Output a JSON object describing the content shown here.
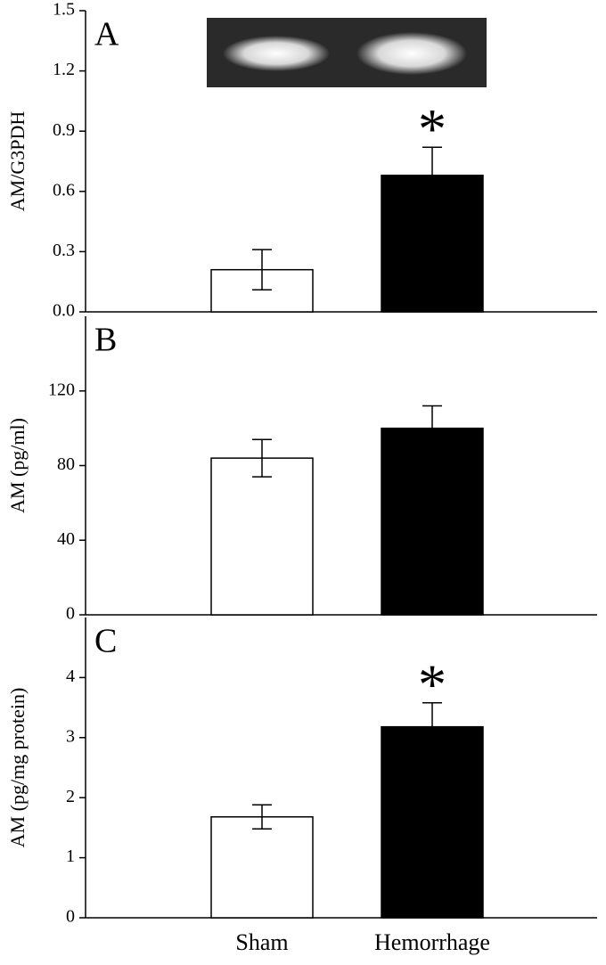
{
  "chart_data": [
    {
      "type": "bar",
      "panel_label": "A",
      "ylabel": "AM/G3PDH",
      "values": [
        0.21,
        0.68
      ],
      "errors": [
        0.1,
        0.14
      ],
      "colors": [
        "#ffffff",
        "#000000"
      ],
      "ylim": [
        0,
        1.5
      ],
      "yticks": [
        {
          "value": 0,
          "label": "0.0"
        },
        0.3,
        0.6,
        0.9,
        1.2,
        1.5
      ],
      "annotation": "*"
    },
    {
      "type": "bar",
      "panel_label": "B",
      "ylabel": "AM (pg/ml)",
      "values": [
        84,
        100
      ],
      "errors": [
        10,
        12
      ],
      "colors": [
        "#ffffff",
        "#000000"
      ],
      "ylim": [
        0,
        160
      ],
      "yticks": [
        0,
        40,
        80,
        120
      ]
    },
    {
      "type": "bar",
      "panel_label": "C",
      "ylabel": "AM (pg/mg protein)",
      "categories": [
        "Sham",
        "Hemorrhage"
      ],
      "values": [
        1.68,
        3.18
      ],
      "errors": [
        0.2,
        0.4
      ],
      "colors": [
        "#ffffff",
        "#000000"
      ],
      "ylim": [
        0,
        5
      ],
      "yticks": [
        0,
        1,
        2,
        3,
        4
      ],
      "annotation": "*"
    }
  ]
}
